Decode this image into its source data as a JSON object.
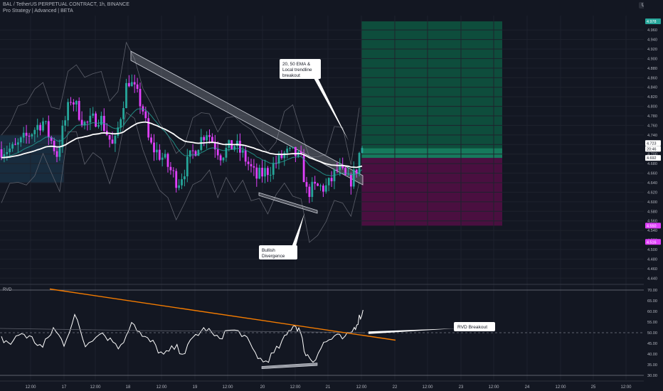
{
  "header": {
    "title": "BAL / TetherUS PERPETUAL CONTRACT, 1h, BINANCE",
    "indicators": "Pro Strategy | Advanced | BETA",
    "quote_currency": "USDT"
  },
  "colors": {
    "background": "#131722",
    "bull": "#26a69a",
    "bear": "#e040fb",
    "ema_fast": "#ffffff",
    "ema_slow": "#26a69a",
    "profit_zone": "#0e4d3c",
    "loss_zone": "#4a0f40",
    "rvd_line": "#ffffff",
    "rvd_trend": "#f57c00"
  },
  "chart_data": [
    {
      "type": "candlestick",
      "pane": "price",
      "ylim": [
        4.43,
        4.99
      ],
      "y_ticks": [
        4.44,
        4.46,
        4.48,
        4.5,
        4.52,
        4.54,
        4.56,
        4.58,
        4.6,
        4.62,
        4.64,
        4.66,
        4.68,
        4.7,
        4.72,
        4.74,
        4.76,
        4.78,
        4.8,
        4.82,
        4.84,
        4.86,
        4.88,
        4.9,
        4.92,
        4.94,
        4.96
      ],
      "x_labels": [
        "12:00",
        "17",
        "12:00",
        "18",
        "12:00",
        "19",
        "12:00",
        "20",
        "12:00",
        "21",
        "12:00",
        "22",
        "12:00",
        "23",
        "12:00",
        "24",
        "12:00",
        "25",
        "12:00"
      ],
      "price_tags": [
        {
          "label": "4.978",
          "value": 4.978,
          "color": "#26a69a"
        },
        {
          "label": "4.723",
          "value": 4.723,
          "color": "#ffffff"
        },
        {
          "label": "20:46",
          "value": 4.711,
          "color": "#ffffff"
        },
        {
          "label": "4.692",
          "value": 4.692,
          "color": "#ffffff"
        },
        {
          "label": "4.550",
          "value": 4.55,
          "color": "#e040fb"
        },
        {
          "label": "4.516",
          "value": 4.516,
          "color": "#e040fb"
        }
      ],
      "annotations": [
        {
          "text": "20, 50 EMA & Local trendline breakout",
          "lines": [
            "20, 50 EMA &",
            "Local trendline",
            "breakout"
          ]
        },
        {
          "text": "Bullish Divergence",
          "lines": [
            "Bullish",
            "Divergence"
          ]
        }
      ],
      "position": {
        "entry": 4.711,
        "target": 4.978,
        "stop": 4.55
      }
    },
    {
      "type": "line",
      "pane": "oscillator",
      "title": "RVD",
      "ylim": [
        28,
        72
      ],
      "y_ticks": [
        30,
        35,
        40,
        45,
        50,
        55,
        60,
        65,
        70
      ],
      "reference_levels": [
        70,
        50,
        30
      ],
      "annotations": [
        {
          "text": "RVD Breakout"
        }
      ]
    }
  ]
}
